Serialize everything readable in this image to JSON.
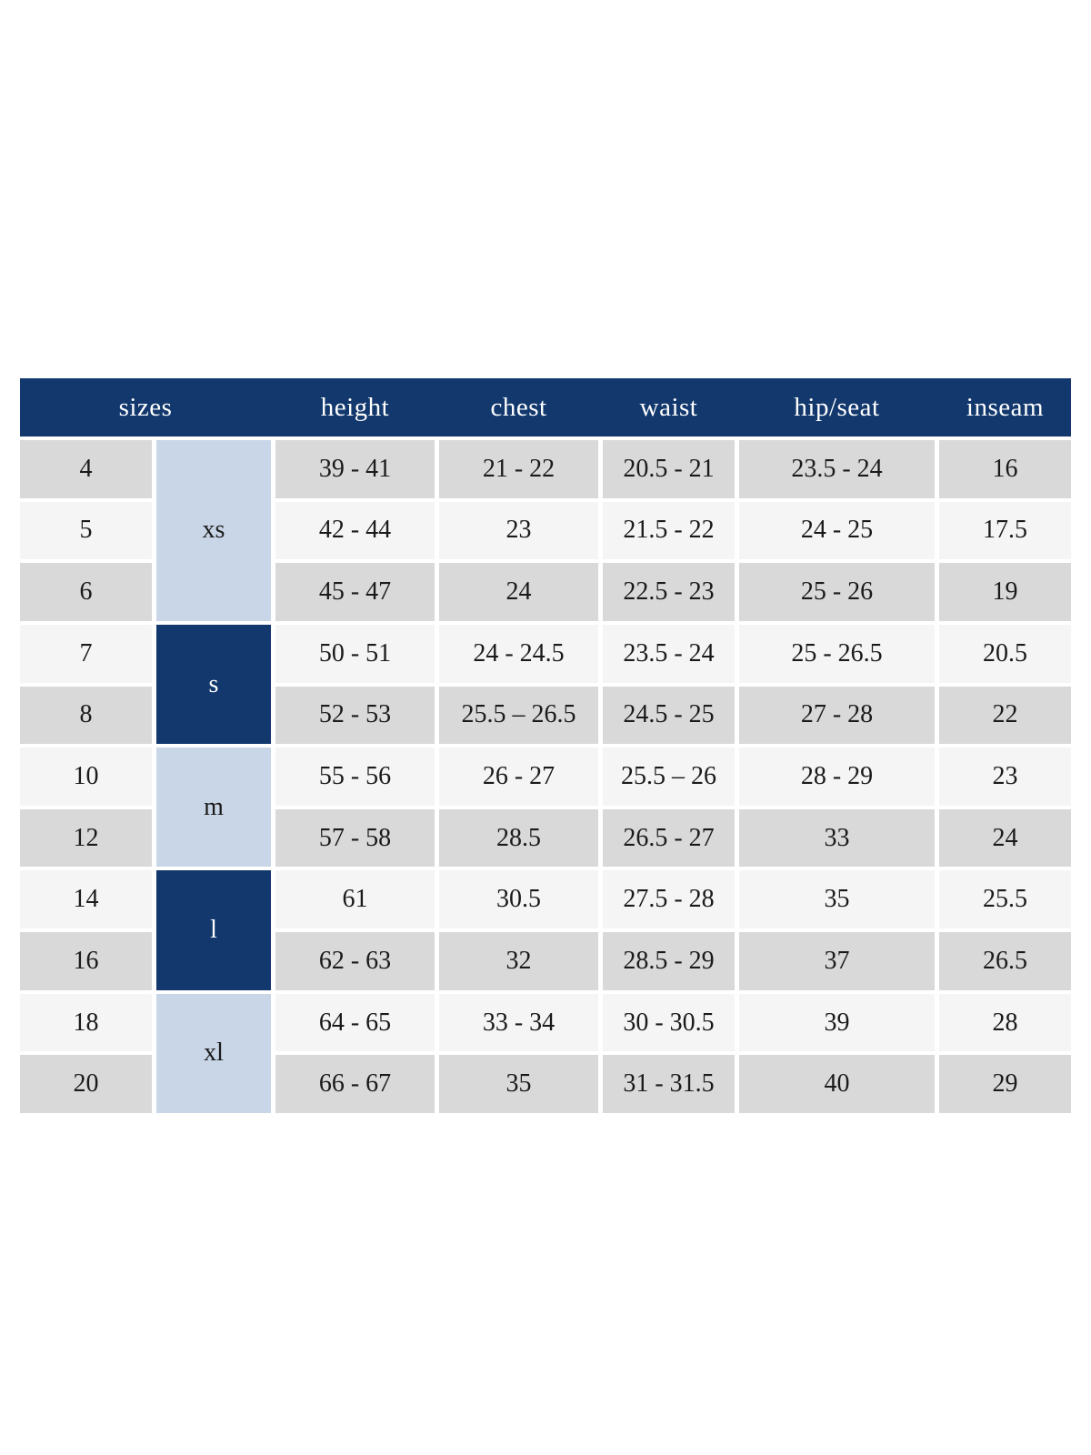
{
  "table": {
    "columns": [
      {
        "label": "sizes"
      },
      {
        "label": "height"
      },
      {
        "label": "chest"
      },
      {
        "label": "waist"
      },
      {
        "label": "hip/seat"
      },
      {
        "label": "inseam"
      }
    ],
    "groups": [
      {
        "label": "xs",
        "rows": 3,
        "variant": "light"
      },
      {
        "label": "s",
        "rows": 2,
        "variant": "dark"
      },
      {
        "label": "m",
        "rows": 2,
        "variant": "light"
      },
      {
        "label": "l",
        "rows": 2,
        "variant": "dark"
      },
      {
        "label": "xl",
        "rows": 2,
        "variant": "light"
      }
    ],
    "rows": [
      {
        "size": "4",
        "height": "39 - 41",
        "chest": "21 - 22",
        "waist": "20.5 - 21",
        "hip_seat": "23.5 - 24",
        "inseam": "16"
      },
      {
        "size": "5",
        "height": "42 - 44",
        "chest": "23",
        "waist": "21.5 - 22",
        "hip_seat": "24 - 25",
        "inseam": "17.5"
      },
      {
        "size": "6",
        "height": "45 - 47",
        "chest": "24",
        "waist": "22.5 - 23",
        "hip_seat": "25 - 26",
        "inseam": "19"
      },
      {
        "size": "7",
        "height": "50 - 51",
        "chest": "24 - 24.5",
        "waist": "23.5 - 24",
        "hip_seat": "25 - 26.5",
        "inseam": "20.5"
      },
      {
        "size": "8",
        "height": "52 - 53",
        "chest": "25.5 – 26.5",
        "waist": "24.5 - 25",
        "hip_seat": "27 - 28",
        "inseam": "22"
      },
      {
        "size": "10",
        "height": "55 - 56",
        "chest": "26 - 27",
        "waist": "25.5 – 26",
        "hip_seat": "28 - 29",
        "inseam": "23"
      },
      {
        "size": "12",
        "height": "57 - 58",
        "chest": "28.5",
        "waist": "26.5 - 27",
        "hip_seat": "33",
        "inseam": "24"
      },
      {
        "size": "14",
        "height": "61",
        "chest": "30.5",
        "waist": "27.5 - 28",
        "hip_seat": "35",
        "inseam": "25.5"
      },
      {
        "size": "16",
        "height": "62 - 63",
        "chest": "32",
        "waist": "28.5 - 29",
        "hip_seat": "37",
        "inseam": "26.5"
      },
      {
        "size": "18",
        "height": "64 - 65",
        "chest": "33 - 34",
        "waist": "30 - 30.5",
        "hip_seat": "39",
        "inseam": "28"
      },
      {
        "size": "20",
        "height": "66 - 67",
        "chest": "35",
        "waist": "31 - 31.5",
        "hip_seat": "40",
        "inseam": "29"
      }
    ]
  },
  "colors": {
    "header_bg": "#12386d",
    "header_text": "#ffffff",
    "group_dark_bg": "#12386d",
    "group_light_bg": "#c8d6e7",
    "row_gray": "#d9d9d9",
    "row_light": "#f5f5f5",
    "body_text": "#1a1a1a"
  }
}
